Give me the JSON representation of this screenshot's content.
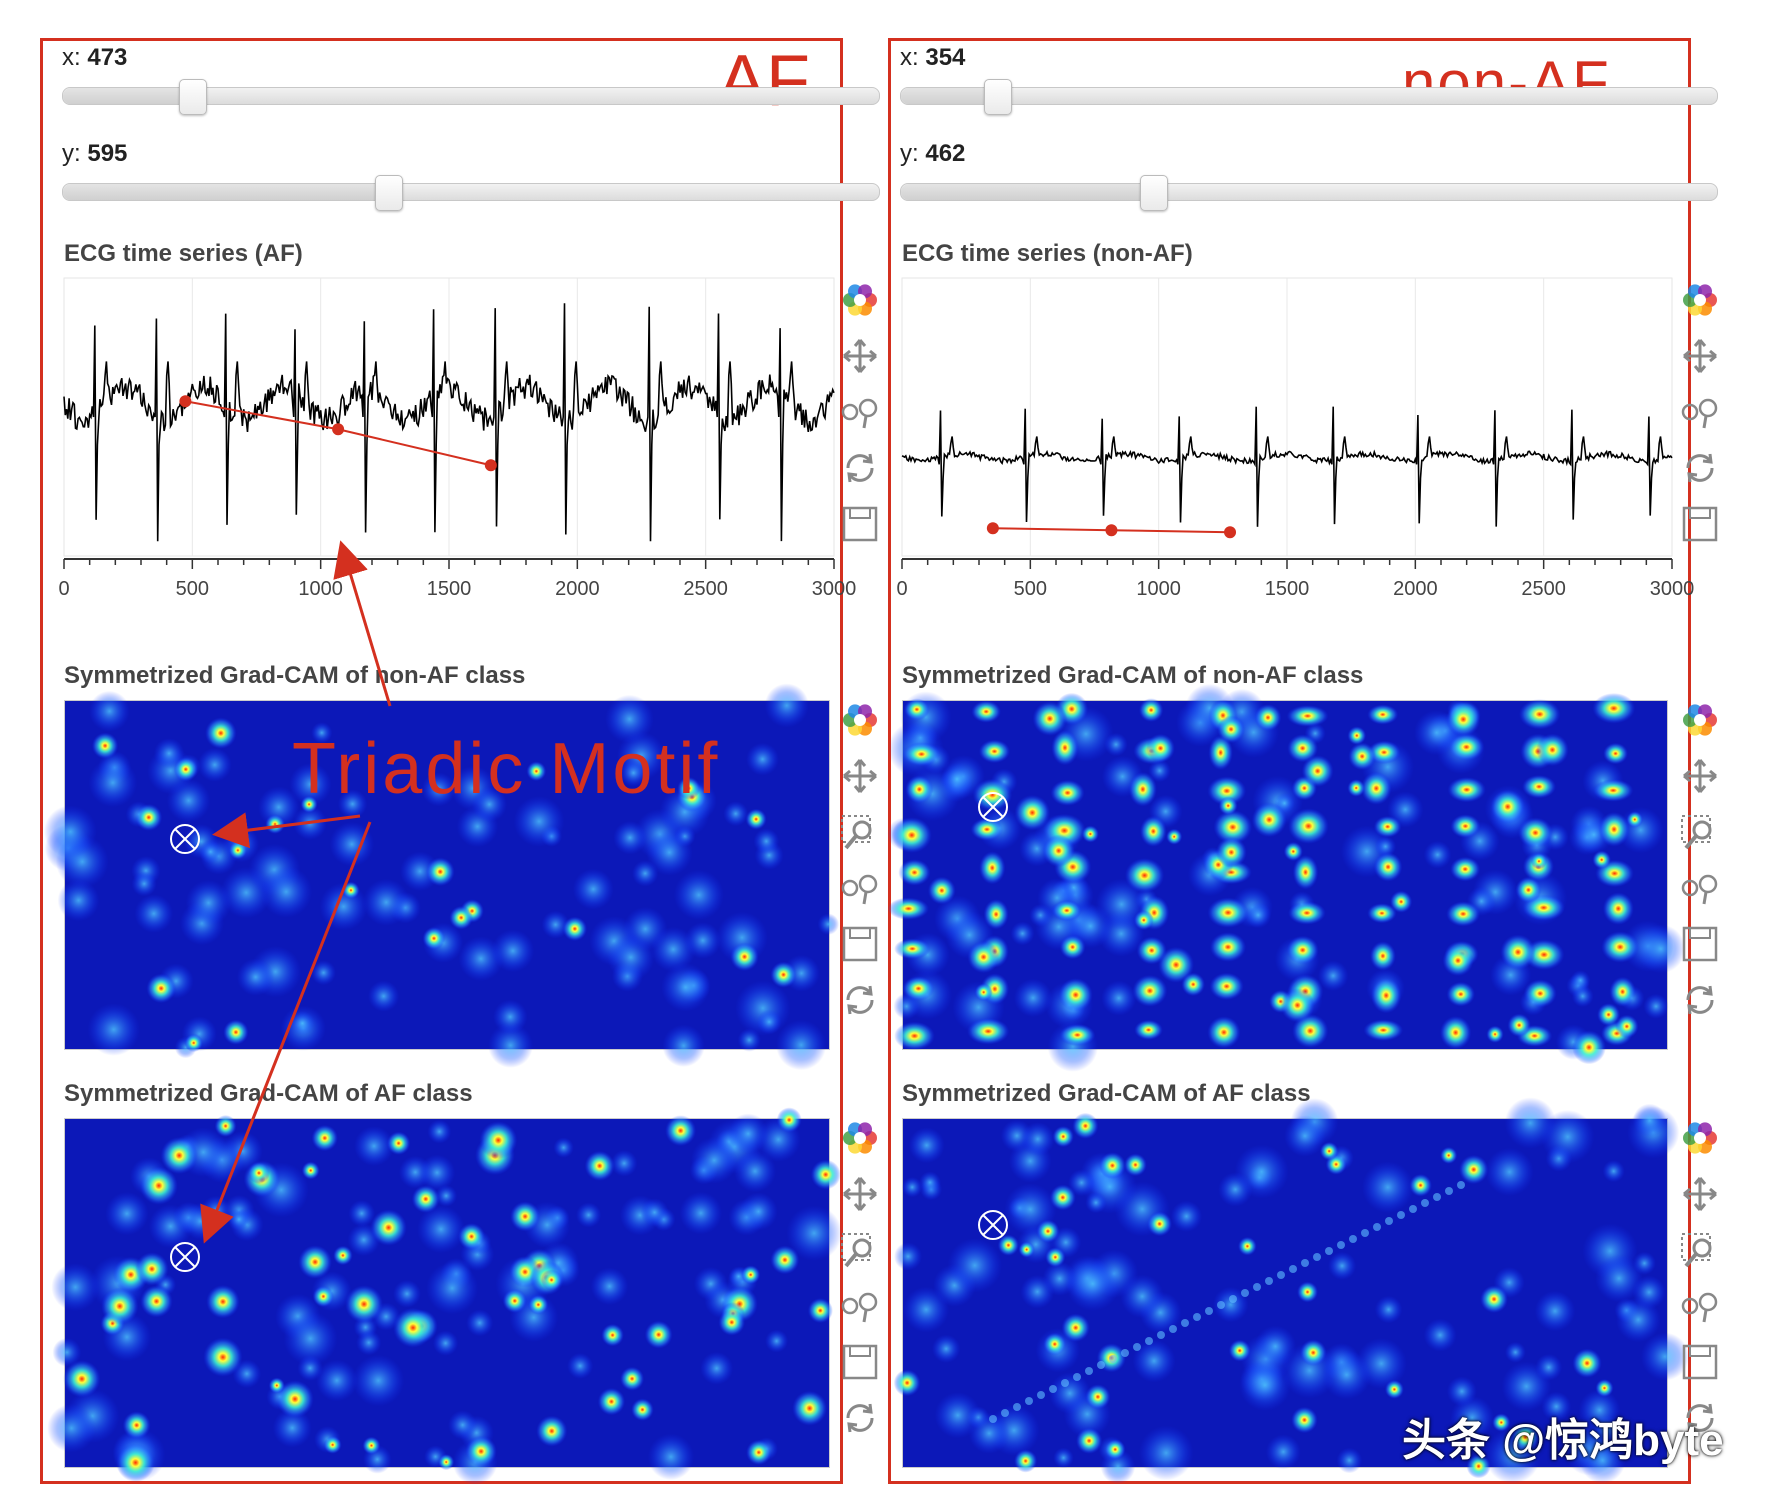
{
  "left": {
    "label": "AF",
    "slider_x": {
      "label": "x:",
      "value": "473",
      "fraction": 0.158
    },
    "slider_y": {
      "label": "y:",
      "value": "595",
      "fraction": 0.398
    },
    "ecg_title": "ECG time series (AF)",
    "heat1_title": "Symmetrized Grad-CAM of non-AF class",
    "heat2_title": "Symmetrized Grad-CAM of AF class",
    "motif_points": [
      [
        473,
        0.44
      ],
      [
        1068,
        0.3
      ],
      [
        1663,
        0.12
      ]
    ]
  },
  "right": {
    "label": "non-AF",
    "slider_x": {
      "label": "x:",
      "value": "354",
      "fraction": 0.118
    },
    "slider_y": {
      "label": "y:",
      "value": "462",
      "fraction": 0.309
    },
    "ecg_title": "ECG time series (non-AF)",
    "heat1_title": "Symmetrized Grad-CAM of non-AF class",
    "heat2_title": "Symmetrized Grad-CAM of AF class",
    "motif_points": [
      [
        354,
        0.1
      ],
      [
        816,
        0.09
      ],
      [
        1278,
        0.08
      ]
    ]
  },
  "x_ticks": [
    "0",
    "500",
    "1000",
    "1500",
    "2000",
    "2500",
    "3000"
  ],
  "annotation": "Triadic Motif",
  "watermark": "头条 @惊鸿byte",
  "colors": {
    "accent": "#d4301f",
    "heat_bg": "#0a14b4"
  },
  "toolbar_icons": [
    "bokeh-logo-icon",
    "pan-icon",
    "wheel-zoom-icon",
    "box-zoom-icon",
    "reset-icon",
    "save-icon"
  ]
}
